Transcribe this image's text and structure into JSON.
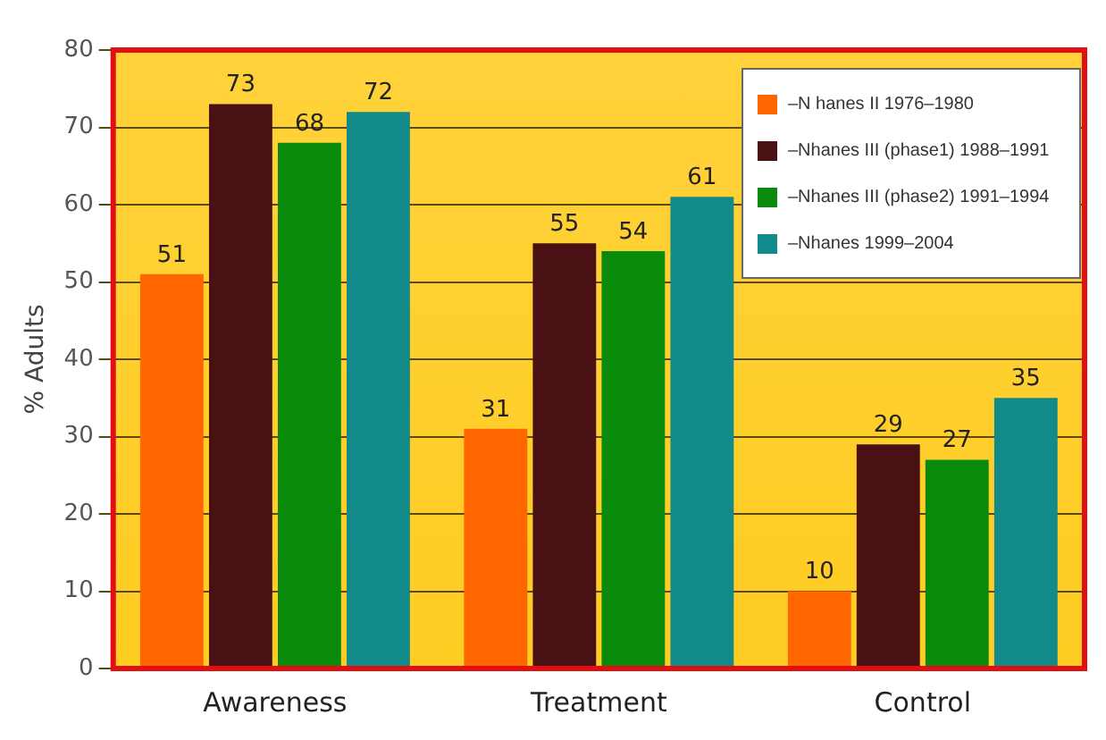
{
  "chart_data": {
    "type": "bar",
    "ylabel": "% Adults",
    "categories": [
      "Awareness",
      "Treatment",
      "Control"
    ],
    "series": [
      {
        "name": "–N hanes II 1976–1980",
        "color": "#ff6600",
        "values": [
          51,
          31,
          10
        ]
      },
      {
        "name": "–Nhanes III (phase1) 1988–1991",
        "color": "#4a1114",
        "values": [
          73,
          55,
          29
        ]
      },
      {
        "name": "–Nhanes III (phase2) 1991–1994",
        "color": "#0a8a0a",
        "values": [
          68,
          54,
          27
        ]
      },
      {
        "name": "–Nhanes 1999–2004",
        "color": "#138a8a",
        "values": [
          72,
          61,
          35
        ]
      }
    ],
    "ylim": [
      0,
      80
    ],
    "yticks": [
      0,
      10,
      20,
      30,
      40,
      50,
      60,
      70,
      80
    ],
    "grid": "y",
    "legend": "top right",
    "data_labels": true
  }
}
